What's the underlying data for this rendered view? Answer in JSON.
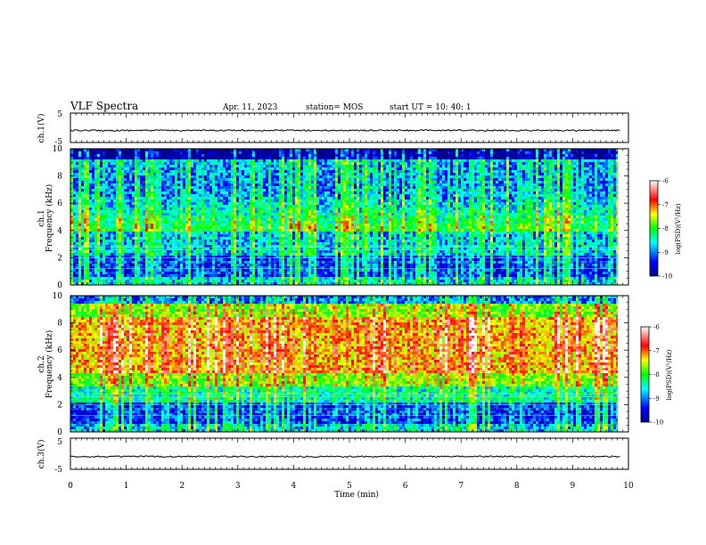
{
  "header": {
    "title": "VLF Spectra",
    "date": "Apr. 11, 2023",
    "station": "station= MOS",
    "start": "start  UT =   10: 40: 1"
  },
  "chart_data": [
    {
      "type": "line",
      "id": "ch1-waveform",
      "ylabel": "ch.1(V)",
      "ylim": [
        -5,
        5
      ],
      "y_ticks": [
        "5",
        "-5"
      ],
      "series": [
        {
          "values": [
            -0.9
          ]
        }
      ]
    },
    {
      "type": "heatmap",
      "id": "ch1-spectrogram",
      "ylabel": "ch.1\nFrequency (kHz)",
      "ylim": [
        0,
        10
      ],
      "y_ticks": [
        "0",
        "2",
        "4",
        "6",
        "8",
        "10"
      ],
      "colorbar": {
        "label": "log(PSD)(V²/Hz)",
        "ticks": [
          "-6",
          "-7",
          "-8",
          "-9",
          "-10"
        ],
        "range": [
          -10,
          -6
        ]
      }
    },
    {
      "type": "heatmap",
      "id": "ch2-spectrogram",
      "ylabel": "ch.2\nFrequency (kHz)",
      "ylim": [
        0,
        10
      ],
      "y_ticks": [
        "0",
        "2",
        "4",
        "6",
        "8",
        "10"
      ],
      "colorbar": {
        "label": "log(PSD)(V²/Hz)",
        "ticks": [
          "-6",
          "-7",
          "-8",
          "-9",
          "-10"
        ],
        "range": [
          -10,
          -6
        ]
      }
    },
    {
      "type": "line",
      "id": "ch3-waveform",
      "ylabel": "ch.3(V)",
      "ylim": [
        -5,
        5
      ],
      "y_ticks": [
        "5",
        "-5"
      ],
      "series": [
        {
          "values": [
            -0.9
          ]
        }
      ]
    }
  ],
  "x_axis": {
    "label": "Time  (min)",
    "range": [
      0,
      10
    ],
    "ticks": [
      "0",
      "1",
      "2",
      "3",
      "4",
      "5",
      "6",
      "7",
      "8",
      "9",
      "10"
    ],
    "data_end": 9.85
  },
  "colors": {
    "colormap": [
      "#000080",
      "#0000ff",
      "#00ffff",
      "#00ff00",
      "#ffff00",
      "#ff0000",
      "#ffffff"
    ]
  }
}
